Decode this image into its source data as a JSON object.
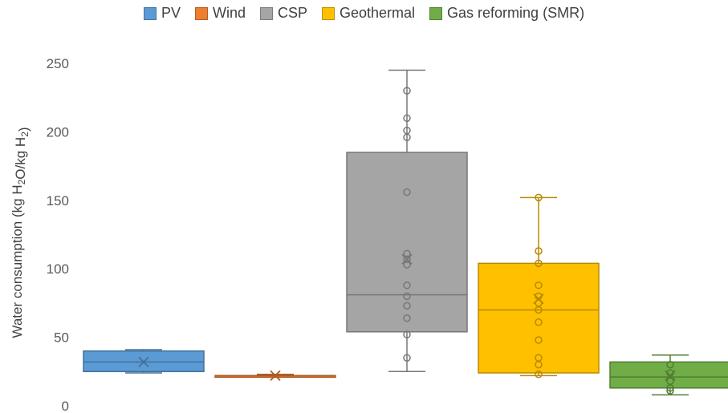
{
  "chart_data": {
    "type": "boxplot",
    "ylabel": "Water consumption (kg H2O/kg H2)",
    "ylim": [
      0,
      250
    ],
    "yticks": [
      0,
      50,
      100,
      150,
      200,
      250
    ],
    "grid": false,
    "legend_position": "top",
    "series": [
      {
        "name": "PV",
        "color": "#5b9bd5",
        "min": 24,
        "q1": 25,
        "median": 32,
        "q3": 40,
        "max": 41,
        "mean": 32,
        "points": []
      },
      {
        "name": "Wind",
        "color": "#ed7d31",
        "min": 21,
        "q1": 21,
        "median": 22,
        "q3": 22,
        "max": 23,
        "mean": 22,
        "points": []
      },
      {
        "name": "CSP",
        "color": "#a5a5a5",
        "min": 25,
        "q1": 54,
        "median": 81,
        "q3": 185,
        "max": 245,
        "mean": 107,
        "points": [
          230,
          210,
          201,
          196,
          156,
          111,
          107,
          103,
          88,
          80,
          73,
          64,
          52,
          35
        ]
      },
      {
        "name": "Geothermal",
        "color": "#ffc000",
        "min": 22,
        "q1": 24,
        "median": 70,
        "q3": 104,
        "max": 152,
        "mean": 78,
        "points": [
          152,
          113,
          104,
          88,
          80,
          75,
          70,
          61,
          48,
          35,
          30,
          23
        ]
      },
      {
        "name": "Gas reforming (SMR)",
        "color": "#70ad47",
        "min": 8,
        "q1": 13,
        "median": 21,
        "q3": 32,
        "max": 37,
        "mean": 22,
        "points": [
          30,
          24,
          18,
          13,
          11
        ]
      }
    ]
  }
}
